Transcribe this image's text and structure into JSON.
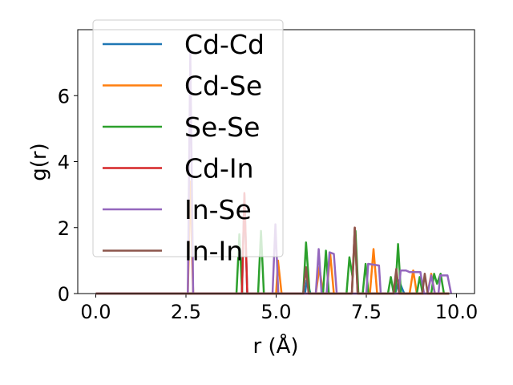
{
  "chart_data": {
    "type": "line",
    "xlabel": "r (Å)",
    "ylabel": "g(r)",
    "xlim": [
      -0.5,
      10.5
    ],
    "ylim": [
      0,
      8.0
    ],
    "xticks": [
      0.0,
      2.5,
      5.0,
      7.5,
      10.0
    ],
    "xtick_labels": [
      "0.0",
      "2.5",
      "5.0",
      "7.5",
      "10.0"
    ],
    "yticks": [
      0,
      2,
      4,
      6
    ],
    "ytick_labels": [
      "0",
      "2",
      "4",
      "6"
    ],
    "grid": false,
    "legend_position": "upper-left",
    "series": [
      {
        "name": "Cd-Cd",
        "color": "#1f77b4",
        "points": [
          [
            0,
            0
          ],
          [
            4.05,
            0
          ],
          [
            4.12,
            3.0
          ],
          [
            4.2,
            0
          ],
          [
            5.8,
            0
          ],
          [
            5.85,
            0.4
          ],
          [
            5.95,
            0
          ],
          [
            8.3,
            0
          ],
          [
            8.4,
            0.4
          ],
          [
            8.55,
            0
          ],
          [
            9.8,
            0
          ]
        ]
      },
      {
        "name": "Cd-Se",
        "color": "#ff7f0e",
        "points": [
          [
            0,
            0
          ],
          [
            2.55,
            0
          ],
          [
            2.62,
            3.4
          ],
          [
            2.7,
            0
          ],
          [
            5.0,
            0
          ],
          [
            5.05,
            1.0
          ],
          [
            5.15,
            0
          ],
          [
            6.1,
            0
          ],
          [
            6.2,
            0.8
          ],
          [
            6.3,
            0
          ],
          [
            6.4,
            0
          ],
          [
            6.5,
            1.2
          ],
          [
            6.6,
            0
          ],
          [
            7.6,
            0
          ],
          [
            7.7,
            1.35
          ],
          [
            7.8,
            0
          ],
          [
            8.7,
            0
          ],
          [
            8.8,
            0.7
          ],
          [
            8.9,
            0
          ],
          [
            9.2,
            0
          ],
          [
            9.3,
            0.6
          ],
          [
            9.4,
            0
          ],
          [
            9.8,
            0
          ]
        ]
      },
      {
        "name": "Se-Se",
        "color": "#2ca02c",
        "points": [
          [
            0,
            0
          ],
          [
            3.9,
            0
          ],
          [
            3.98,
            1.8
          ],
          [
            4.06,
            0
          ],
          [
            4.5,
            0
          ],
          [
            4.58,
            1.9
          ],
          [
            4.66,
            0
          ],
          [
            5.75,
            0
          ],
          [
            5.83,
            1.55
          ],
          [
            5.93,
            0
          ],
          [
            6.3,
            0
          ],
          [
            6.38,
            1.3
          ],
          [
            6.46,
            0
          ],
          [
            6.95,
            0
          ],
          [
            7.03,
            1.1
          ],
          [
            7.12,
            0.5
          ],
          [
            7.2,
            1.9
          ],
          [
            7.28,
            0
          ],
          [
            7.4,
            0
          ],
          [
            7.48,
            0.9
          ],
          [
            7.56,
            0
          ],
          [
            8.1,
            0
          ],
          [
            8.18,
            0.5
          ],
          [
            8.26,
            0
          ],
          [
            8.3,
            0
          ],
          [
            8.38,
            1.5
          ],
          [
            8.46,
            0
          ],
          [
            8.9,
            0
          ],
          [
            8.98,
            0.5
          ],
          [
            9.06,
            0
          ],
          [
            9.3,
            0
          ],
          [
            9.38,
            0.6
          ],
          [
            9.46,
            0.3
          ],
          [
            9.56,
            0.6
          ],
          [
            9.65,
            0
          ],
          [
            9.8,
            0
          ]
        ]
      },
      {
        "name": "Cd-In",
        "color": "#d62728",
        "points": [
          [
            0,
            0
          ],
          [
            4.05,
            0
          ],
          [
            4.12,
            3.05
          ],
          [
            4.2,
            0
          ],
          [
            7.1,
            0
          ],
          [
            7.18,
            2.0
          ],
          [
            7.26,
            0
          ],
          [
            9.8,
            0
          ]
        ]
      },
      {
        "name": "In-Se",
        "color": "#9467bd",
        "points": [
          [
            0,
            0
          ],
          [
            2.55,
            0
          ],
          [
            2.62,
            7.3
          ],
          [
            2.7,
            0
          ],
          [
            4.9,
            0
          ],
          [
            4.98,
            2.1
          ],
          [
            5.06,
            0
          ],
          [
            6.1,
            0
          ],
          [
            6.18,
            1.35
          ],
          [
            6.26,
            0
          ],
          [
            6.4,
            0
          ],
          [
            6.48,
            1.25
          ],
          [
            6.6,
            1.2
          ],
          [
            6.68,
            0
          ],
          [
            7.5,
            0
          ],
          [
            7.55,
            0.9
          ],
          [
            7.85,
            0.85
          ],
          [
            7.9,
            0
          ],
          [
            8.4,
            0
          ],
          [
            8.45,
            0.7
          ],
          [
            8.6,
            0.7
          ],
          [
            8.7,
            0.65
          ],
          [
            9.0,
            0.65
          ],
          [
            9.1,
            0
          ],
          [
            9.2,
            0
          ],
          [
            9.3,
            0.55
          ],
          [
            9.4,
            0
          ],
          [
            9.5,
            0
          ],
          [
            9.55,
            0.55
          ],
          [
            9.75,
            0.55
          ],
          [
            9.85,
            0
          ]
        ]
      },
      {
        "name": "In-In",
        "color": "#8c564b",
        "points": [
          [
            0,
            0
          ],
          [
            5.75,
            0
          ],
          [
            5.83,
            0.8
          ],
          [
            5.9,
            0
          ],
          [
            7.1,
            0
          ],
          [
            7.18,
            2.0
          ],
          [
            7.26,
            0
          ],
          [
            8.25,
            0
          ],
          [
            8.33,
            0.75
          ],
          [
            8.41,
            0
          ],
          [
            9.05,
            0
          ],
          [
            9.12,
            0.6
          ],
          [
            9.2,
            0
          ],
          [
            9.8,
            0
          ]
        ]
      }
    ]
  }
}
